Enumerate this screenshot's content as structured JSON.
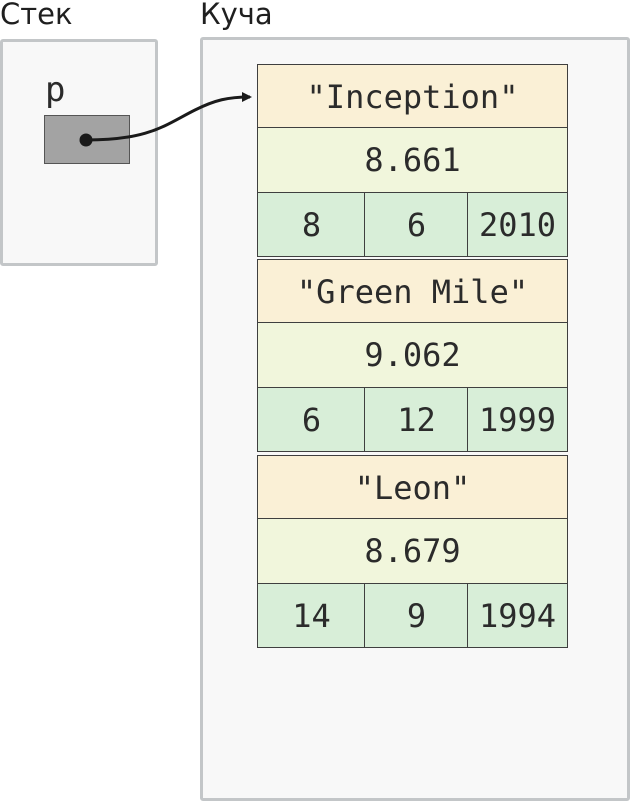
{
  "labels": {
    "stack": "Стек",
    "heap": "Куча",
    "variable": "p"
  },
  "records": [
    {
      "title": "\"Inception\"",
      "rating": "8.661",
      "nums": [
        "8",
        "6",
        "2010"
      ]
    },
    {
      "title": "\"Green Mile\"",
      "rating": "9.062",
      "nums": [
        "6",
        "12",
        "1999"
      ]
    },
    {
      "title": "\"Leon\"",
      "rating": "8.679",
      "nums": [
        "14",
        "9",
        "1994"
      ]
    }
  ],
  "colors": {
    "title_cell": "#faf0d6",
    "rating_cell": "#f1f6dc",
    "number_cell": "#d8eed8",
    "pointer_box": "#a3a3a3",
    "panel": "#f8f8f8"
  }
}
